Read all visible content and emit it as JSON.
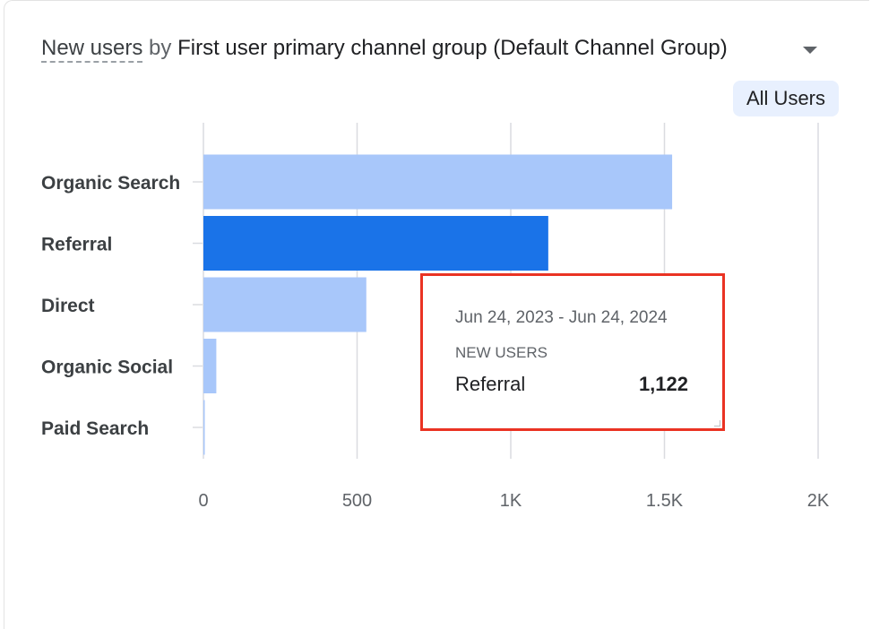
{
  "header": {
    "metric": "New users",
    "by": "by",
    "dimension": "First user primary channel group (Default Channel Group)"
  },
  "segment_chip": "All Users",
  "tooltip": {
    "date_range": "Jun 24, 2023 - Jun 24, 2024",
    "metric_label": "NEW USERS",
    "row_label": "Referral",
    "row_value": "1,122"
  },
  "colors": {
    "bar": "#a8c7fa",
    "bar_highlight": "#1a73e8",
    "grid": "#dadce0",
    "tooltip_border": "#ea3323"
  },
  "chart_data": {
    "type": "bar",
    "orientation": "horizontal",
    "categories": [
      "Organic Search",
      "Referral",
      "Direct",
      "Organic Social",
      "Paid Search"
    ],
    "values": [
      1525,
      1122,
      530,
      42,
      4
    ],
    "highlighted": "Referral",
    "xlim": [
      0,
      2000
    ],
    "x_ticks": [
      0,
      500,
      1000,
      1500,
      2000
    ],
    "x_tick_labels": [
      "0",
      "500",
      "1K",
      "1.5K",
      "2K"
    ],
    "grid": true
  }
}
